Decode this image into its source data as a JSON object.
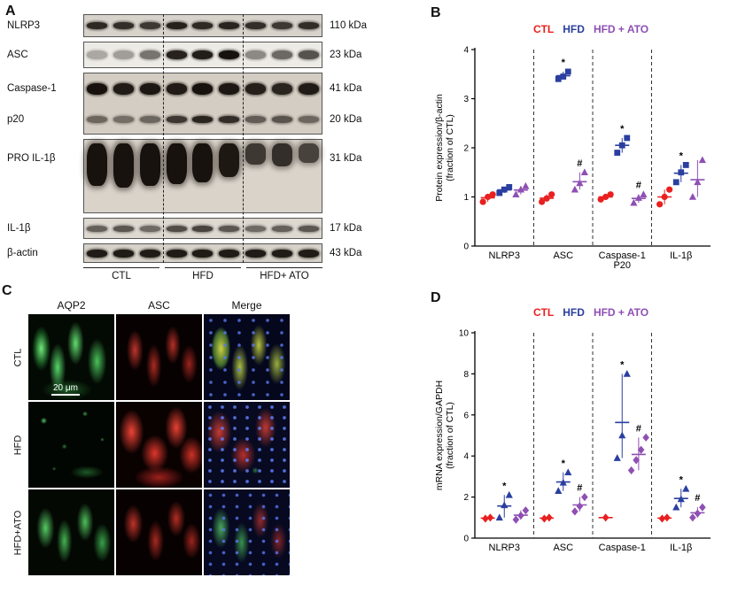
{
  "figure": {
    "panels": {
      "a": "A",
      "b": "B",
      "c": "C",
      "d": "D"
    }
  },
  "panel_a": {
    "rows": [
      {
        "label": "NLRP3",
        "kda": "110 kDa",
        "lanes": [
          0.88,
          0.85,
          0.8,
          0.92,
          0.88,
          0.9,
          0.85,
          0.8,
          0.86
        ]
      },
      {
        "label": "ASC",
        "kda": "23 kDa",
        "lanes": [
          0.3,
          0.35,
          0.55,
          0.92,
          0.95,
          1.0,
          0.45,
          0.6,
          0.7
        ]
      },
      {
        "label": "Caspase-1",
        "kda": "41 kDa",
        "lanes": [
          1.0,
          0.95,
          0.97,
          0.95,
          1.0,
          0.97,
          0.93,
          0.9,
          0.95
        ]
      },
      {
        "label": "p20",
        "kda": "20 kDa",
        "lanes": [
          0.55,
          0.5,
          0.55,
          0.8,
          0.9,
          0.85,
          0.6,
          0.65,
          0.55
        ]
      },
      {
        "label": "PRO IL-1β",
        "kda": "31 kDa",
        "lanes": [
          1.0,
          1.0,
          1.0,
          1.0,
          1.0,
          0.97,
          0.8,
          0.85,
          0.75
        ]
      },
      {
        "label": "IL-1β",
        "kda": "17 kDa",
        "lanes": [
          0.6,
          0.65,
          0.55,
          0.7,
          0.75,
          0.65,
          0.55,
          0.6,
          0.65
        ]
      },
      {
        "label": "β-actin",
        "kda": "43 kDa",
        "lanes": [
          0.95,
          0.95,
          0.95,
          0.95,
          0.95,
          0.95,
          0.95,
          0.95,
          0.95
        ]
      }
    ],
    "groups": [
      "CTL",
      "HFD",
      "HFD+ ATO"
    ]
  },
  "panel_c": {
    "columns": [
      "AQP2",
      "ASC",
      "Merge"
    ],
    "rows": [
      "CTL",
      "HFD",
      "HFD+ATO"
    ],
    "scale_bar": "20 μm"
  },
  "chart_data": [
    {
      "type": "scatter",
      "panel": "B",
      "ylabel": "Protein expression/β-actin\n(fraction of CTL)",
      "ylim": [
        0,
        4
      ],
      "yticks": [
        0,
        1,
        2,
        3,
        4
      ],
      "categories": [
        "NLRP3",
        "ASC",
        "Caspase-1\nP20",
        "IL-1β"
      ],
      "series": [
        {
          "name": "CTL",
          "marker": "circle",
          "color": "#e8201f",
          "values": [
            [
              0.9,
              1.0,
              1.05
            ],
            [
              0.9,
              0.97,
              1.05
            ],
            [
              0.95,
              1.0,
              1.05
            ],
            [
              0.85,
              1.0,
              1.15
            ]
          ]
        },
        {
          "name": "HFD",
          "marker": "square",
          "color": "#2a3f9f",
          "values": [
            [
              1.08,
              1.15,
              1.2
            ],
            [
              3.4,
              3.45,
              3.55
            ],
            [
              1.9,
              2.05,
              2.2
            ],
            [
              1.3,
              1.5,
              1.65
            ]
          ]
        },
        {
          "name": "HFD + ATO",
          "marker": "triangle",
          "color": "#8f4fb3",
          "values": [
            [
              1.05,
              1.15,
              1.22
            ],
            [
              1.15,
              1.28,
              1.5
            ],
            [
              0.88,
              0.98,
              1.05
            ],
            [
              1.0,
              1.3,
              1.75
            ]
          ]
        }
      ],
      "annotations": [
        {
          "category": 1,
          "series": 1,
          "text": "*"
        },
        {
          "category": 1,
          "series": 2,
          "text": "#"
        },
        {
          "category": 2,
          "series": 1,
          "text": "*"
        },
        {
          "category": 2,
          "series": 2,
          "text": "#"
        },
        {
          "category": 3,
          "series": 1,
          "text": "*"
        }
      ]
    },
    {
      "type": "scatter",
      "panel": "D",
      "ylabel": "mRNA  expression/GAPDH\n(fraction of CTL)",
      "ylim": [
        0,
        10
      ],
      "yticks": [
        0,
        2,
        4,
        6,
        8,
        10
      ],
      "categories": [
        "NLRP3",
        "ASC",
        "Caspase-1",
        "IL-1β"
      ],
      "series": [
        {
          "name": "CTL",
          "marker": "diamond",
          "color": "#e8201f",
          "values": [
            [
              0.95,
              1.0
            ],
            [
              0.95,
              1.0
            ],
            [
              1.0
            ],
            [
              0.95,
              1.0
            ]
          ]
        },
        {
          "name": "HFD",
          "marker": "triangle",
          "color": "#2a3f9f",
          "values": [
            [
              1.0,
              1.6,
              2.1
            ],
            [
              2.3,
              2.7,
              3.2
            ],
            [
              3.9,
              5.0,
              8.0
            ],
            [
              1.5,
              1.9,
              2.4
            ]
          ]
        },
        {
          "name": "HFD + ATO",
          "marker": "diamond",
          "color": "#8f4fb3",
          "values": [
            [
              0.9,
              1.1,
              1.35
            ],
            [
              1.3,
              1.55,
              2.0
            ],
            [
              3.3,
              3.8,
              4.3,
              4.9
            ],
            [
              1.0,
              1.2,
              1.5
            ]
          ]
        }
      ],
      "annotations": [
        {
          "category": 0,
          "series": 1,
          "text": "*"
        },
        {
          "category": 1,
          "series": 1,
          "text": "*"
        },
        {
          "category": 1,
          "series": 2,
          "text": "#"
        },
        {
          "category": 2,
          "series": 1,
          "text": "*"
        },
        {
          "category": 2,
          "series": 2,
          "text": "#"
        },
        {
          "category": 3,
          "series": 1,
          "text": "*"
        },
        {
          "category": 3,
          "series": 2,
          "text": "#"
        }
      ]
    }
  ]
}
